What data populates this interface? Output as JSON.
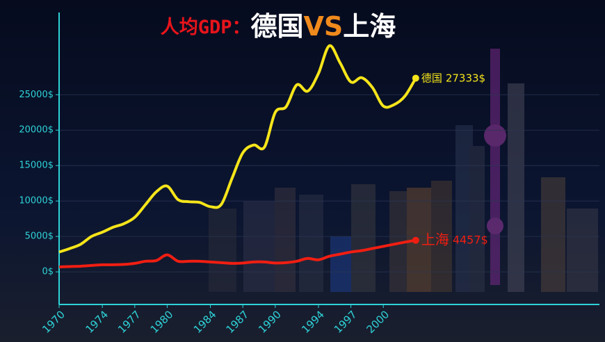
{
  "chart_data": {
    "type": "line",
    "title_parts": [
      {
        "text": "人均GDP：",
        "color": "#e8141b"
      },
      {
        "text": "德国",
        "color": "#ffffff"
      },
      {
        "text": "VS",
        "color": "#f08a1c"
      },
      {
        "text": "上海",
        "color": "#ffffff"
      }
    ],
    "x": [
      1970,
      1971,
      1972,
      1973,
      1974,
      1975,
      1976,
      1977,
      1978,
      1979,
      1980,
      1981,
      1982,
      1983,
      1984,
      1985,
      1986,
      1987,
      1988,
      1989,
      1990,
      1991,
      1992,
      1993,
      1994,
      1995,
      1996,
      1997,
      1998,
      1999,
      2000,
      2001,
      2002,
      2003
    ],
    "series": [
      {
        "name": "德国",
        "color": "#f6e51a",
        "values": [
          2800,
          3300,
          3900,
          5000,
          5600,
          6300,
          6800,
          7700,
          9500,
          11300,
          12100,
          10200,
          9900,
          9800,
          9200,
          9500,
          13200,
          16800,
          17900,
          17600,
          22500,
          23300,
          26400,
          25500,
          28000,
          31900,
          29500,
          26800,
          27400,
          26000,
          23400,
          23600,
          24800,
          27333
        ],
        "value_labels": [
          null,
          null,
          null,
          null,
          null,
          null,
          null,
          null,
          null,
          null,
          null,
          null,
          null,
          null,
          null,
          null,
          null,
          null,
          null,
          null,
          null,
          null,
          null,
          null,
          null,
          null,
          null,
          null,
          null,
          null,
          null,
          null,
          null,
          "27333$"
        ]
      },
      {
        "name": "上海",
        "color": "#f01e12",
        "values": [
          700,
          750,
          800,
          900,
          1000,
          1000,
          1050,
          1200,
          1500,
          1600,
          2400,
          1500,
          1500,
          1500,
          1400,
          1300,
          1200,
          1250,
          1400,
          1400,
          1250,
          1300,
          1500,
          1900,
          1700,
          2200,
          2500,
          2800,
          3000,
          3300,
          3600,
          3900,
          4200,
          4457
        ],
        "value_labels": [
          null,
          null,
          null,
          null,
          null,
          null,
          null,
          null,
          null,
          null,
          null,
          null,
          null,
          null,
          null,
          null,
          null,
          null,
          null,
          null,
          null,
          null,
          null,
          null,
          null,
          null,
          null,
          null,
          null,
          null,
          null,
          null,
          null,
          "4457$"
        ]
      }
    ],
    "xlim": [
      1970,
      2020
    ],
    "xticks": [
      1970,
      1974,
      1977,
      1980,
      1984,
      1987,
      1990,
      1994,
      1997,
      2000
    ],
    "ylim": [
      -4600,
      36600
    ],
    "yticks": [
      {
        "value": 0,
        "label": "0$"
      },
      {
        "value": 5000,
        "label": "5000$"
      },
      {
        "value": 10000,
        "label": "10000$"
      },
      {
        "value": 15000,
        "label": "15000$"
      },
      {
        "value": 20000,
        "label": "20000$"
      },
      {
        "value": 25000,
        "label": "25000$"
      }
    ],
    "grid": true,
    "axis_color": "#2ed3d8"
  }
}
